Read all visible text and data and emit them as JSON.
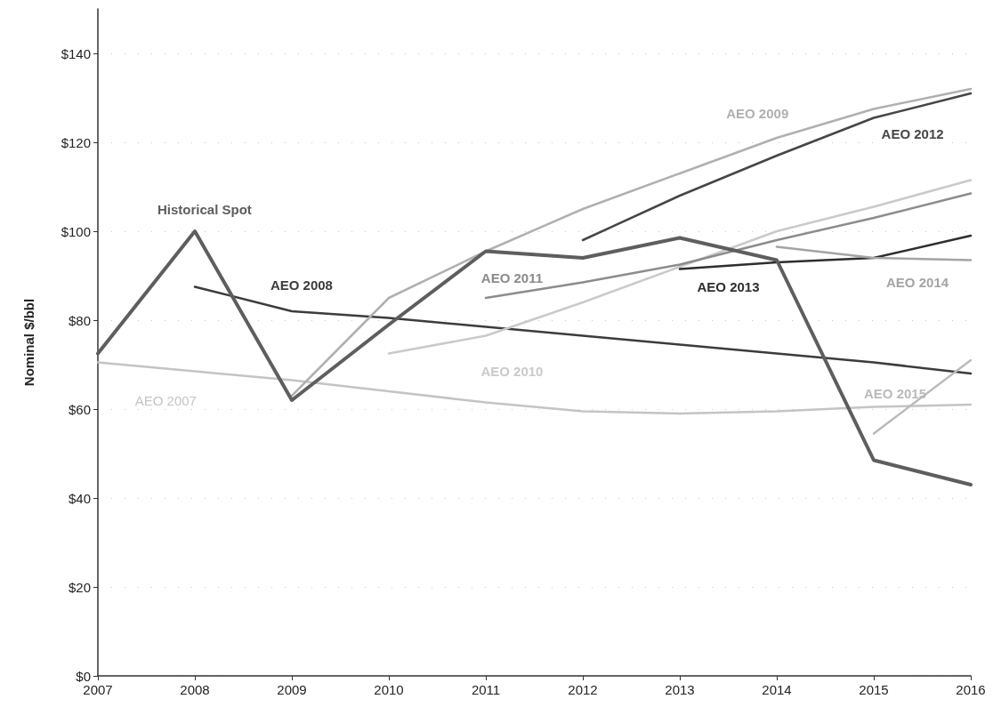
{
  "chart_data": {
    "type": "line",
    "ylabel": "Nominal $/bbl",
    "xlim": [
      2007,
      2016
    ],
    "xticks": [
      2007,
      2008,
      2009,
      2010,
      2011,
      2012,
      2013,
      2014,
      2015,
      2016
    ],
    "ylim": [
      0,
      150
    ],
    "yticks": [
      {
        "value": 0,
        "label": "$0"
      },
      {
        "value": 20,
        "label": "$20"
      },
      {
        "value": 40,
        "label": "$40"
      },
      {
        "value": 60,
        "label": "$60"
      },
      {
        "value": 80,
        "label": "$80"
      },
      {
        "value": 100,
        "label": "$100"
      },
      {
        "value": 120,
        "label": "$120"
      },
      {
        "value": 140,
        "label": "$140"
      }
    ],
    "grid": "y",
    "series": [
      {
        "name": "Historical Spot",
        "color": "#5e5e5e",
        "x": [
          2007,
          2008,
          2009,
          2010,
          2011,
          2012,
          2013,
          2014,
          2015,
          2016
        ],
        "values": [
          72.5,
          100,
          62,
          79,
          95.5,
          94,
          98.5,
          93.5,
          48.5,
          43
        ]
      },
      {
        "name": "AEO 2007",
        "color": "#c4c4c4",
        "x": [
          2007,
          2008,
          2009,
          2010,
          2011,
          2012,
          2013,
          2014,
          2015,
          2016
        ],
        "values": [
          70.5,
          68.5,
          66.5,
          64,
          61.5,
          59.5,
          59,
          59.5,
          60.5,
          61
        ]
      },
      {
        "name": "AEO 2008",
        "color": "#3c3c3c",
        "x": [
          2008,
          2009,
          2010,
          2011,
          2012,
          2013,
          2014,
          2015,
          2016
        ],
        "values": [
          87.5,
          82,
          80.5,
          78.5,
          76.5,
          74.5,
          72.5,
          70.5,
          68
        ]
      },
      {
        "name": "AEO 2009",
        "color": "#b0b0b0",
        "x": [
          2009,
          2010,
          2011,
          2012,
          2013,
          2014,
          2015,
          2016
        ],
        "values": [
          63,
          85,
          95.5,
          105,
          113,
          121,
          127.5,
          132
        ]
      },
      {
        "name": "AEO 2010",
        "color": "#cacaca",
        "x": [
          2010,
          2011,
          2012,
          2013,
          2014,
          2015,
          2016
        ],
        "values": [
          72.5,
          76.5,
          84,
          92,
          100,
          105.5,
          111.5
        ]
      },
      {
        "name": "AEO 2011",
        "color": "#8c8c8c",
        "x": [
          2011,
          2012,
          2013,
          2014,
          2015,
          2016
        ],
        "values": [
          85,
          88.5,
          92.5,
          98,
          103,
          108.5
        ]
      },
      {
        "name": "AEO 2012",
        "color": "#464646",
        "x": [
          2012,
          2013,
          2014,
          2015,
          2016
        ],
        "values": [
          98,
          108,
          117,
          125.5,
          131
        ]
      },
      {
        "name": "AEO 2013",
        "color": "#2e2e2e",
        "x": [
          2013,
          2014,
          2015,
          2016
        ],
        "values": [
          91.5,
          93,
          94,
          99
        ]
      },
      {
        "name": "AEO 2014",
        "color": "#a4a4a4",
        "x": [
          2014,
          2015,
          2016
        ],
        "values": [
          96.5,
          94,
          93.5
        ]
      },
      {
        "name": "AEO 2015",
        "color": "#bababa",
        "x": [
          2015,
          2016
        ],
        "values": [
          54.5,
          71
        ]
      }
    ]
  }
}
